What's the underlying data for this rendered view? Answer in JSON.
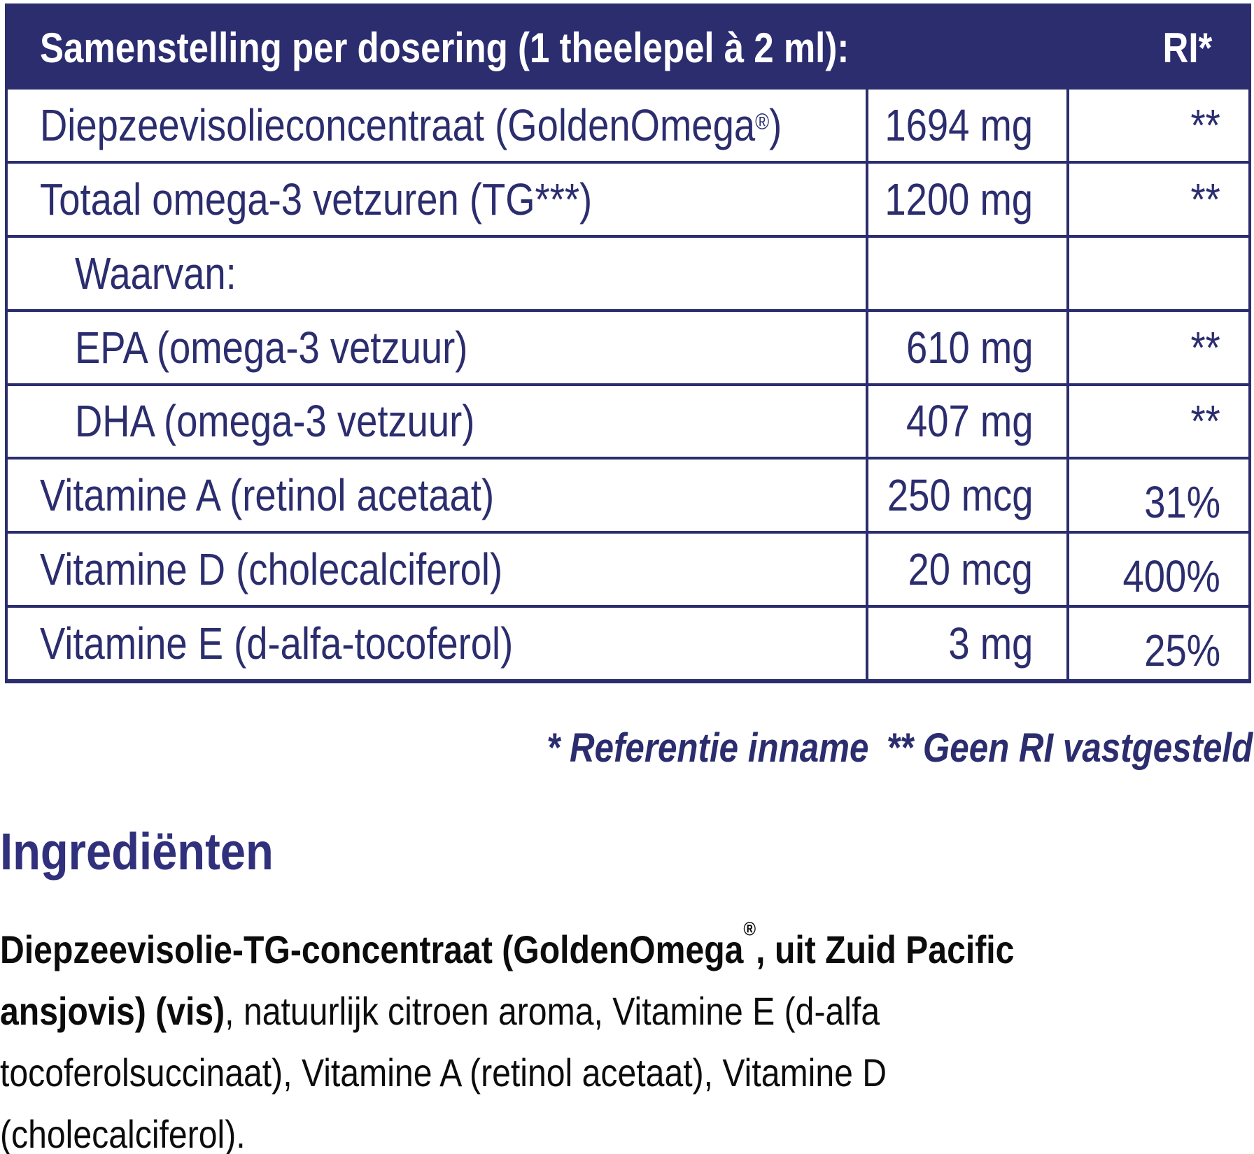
{
  "colors": {
    "table_navy": "#2c2d6f",
    "table_text": "#2b2d6e",
    "heading_indigo": "#31307c",
    "body_black": "#0c0c0d",
    "background": "#ffffff"
  },
  "table": {
    "header": {
      "title": "Samenstelling per dosering (1 theelepel à 2 ml):",
      "ri_label": "RI*"
    },
    "rows": [
      {
        "name": "Diepzeevisolieconcentraat (GoldenOmega®)",
        "amount": "1694 mg",
        "ri": "**",
        "indent": false
      },
      {
        "name": "Totaal omega-3 vetzuren (TG***)",
        "amount": "1200 mg",
        "ri": "**",
        "indent": false
      },
      {
        "name": "Waarvan:",
        "amount": "",
        "ri": "",
        "indent": true
      },
      {
        "name": "EPA (omega-3 vetzuur)",
        "amount": "610 mg",
        "ri": "**",
        "indent": true
      },
      {
        "name": "DHA (omega-3 vetzuur)",
        "amount": "407 mg",
        "ri": "**",
        "indent": true
      },
      {
        "name": "Vitamine A (retinol acetaat)",
        "amount": "250 mcg",
        "ri": "31%",
        "indent": false
      },
      {
        "name": "Vitamine D (cholecalciferol)",
        "amount": "20 mcg",
        "ri": "400%",
        "indent": false
      },
      {
        "name": "Vitamine E (d-alfa-tocoferol)",
        "amount": "3 mg",
        "ri": "25%",
        "indent": false
      }
    ]
  },
  "footnote": {
    "note1": "* Referentie inname",
    "note2": "** Geen RI vastgesteld"
  },
  "ingredients": {
    "heading": "Ingrediënten",
    "lines": [
      {
        "bold": "Diepzeevisolie-TG-concentraat (GoldenOmega®, uit Zuid Pacific",
        "regular": ""
      },
      {
        "bold": "ansjovis) (vis)",
        "regular": ", natuurlijk citroen aroma, Vitamine E (d-alfa"
      },
      {
        "bold": "",
        "regular": "tocoferolsuccinaat), Vitamine A (retinol acetaat), Vitamine D"
      },
      {
        "bold": "",
        "regular": "(cholecalciferol)."
      }
    ]
  }
}
